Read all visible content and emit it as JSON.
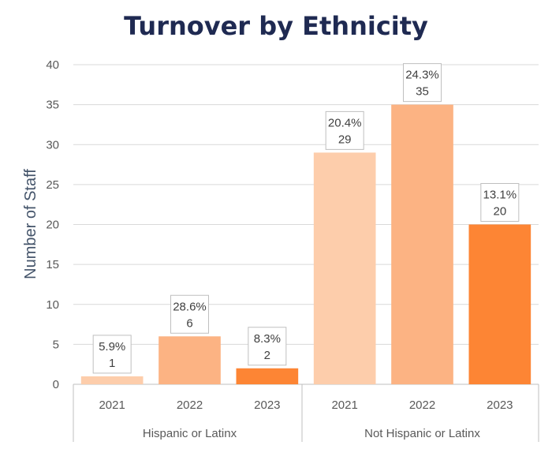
{
  "chart_data": {
    "type": "bar",
    "title": "Turnover by Ethnicity",
    "xlabel": "",
    "ylabel": "Number of Staff",
    "ylim": [
      0,
      40
    ],
    "yticks": [
      0,
      5,
      10,
      15,
      20,
      25,
      30,
      35,
      40
    ],
    "grid": true,
    "legend": "none",
    "groups": [
      {
        "name": "Hispanic or Latinx",
        "categories": [
          "2021",
          "2022",
          "2023"
        ],
        "values": [
          1,
          6,
          2
        ],
        "percent_labels": [
          "5.9%",
          "28.6%",
          "8.3%"
        ]
      },
      {
        "name": "Not Hispanic or Latinx",
        "categories": [
          "2021",
          "2022",
          "2023"
        ],
        "values": [
          29,
          35,
          20
        ],
        "percent_labels": [
          "20.4%",
          "24.3%",
          "13.1%"
        ]
      }
    ],
    "colors": {
      "2021": "#fdcdab",
      "2022": "#fcb383",
      "2023": "#fd8534",
      "grid": "#d9d9d9",
      "axis": "#bfbfbf"
    }
  }
}
